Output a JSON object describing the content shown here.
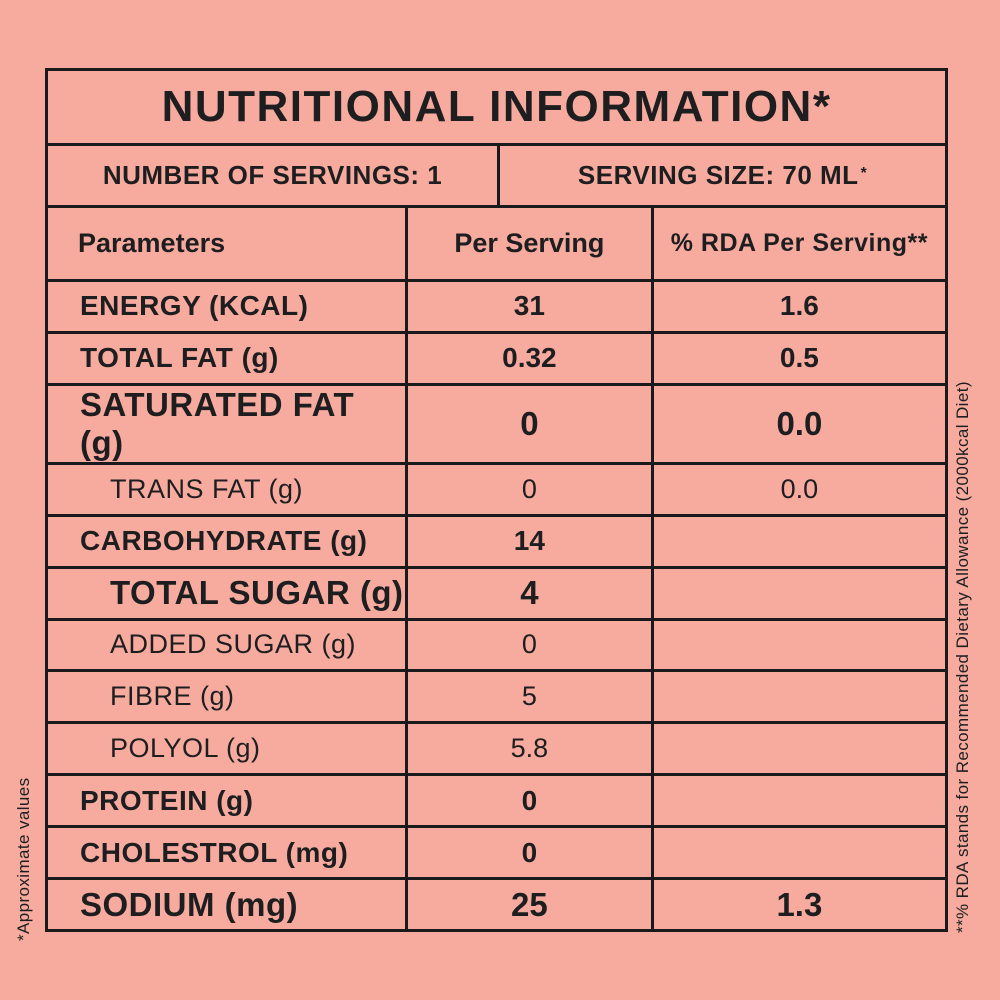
{
  "colors": {
    "background": "#F6AB9E",
    "line": "#1A1A1C",
    "text": "#1E1E20"
  },
  "table": {
    "title": "NUTRITIONAL INFORMATION*",
    "servings_label": "NUMBER OF SERVINGS: 1",
    "serving_size_label": "SERVING SIZE: 70 ML",
    "serving_size_footnote_mark": "*",
    "columns": [
      "Parameters",
      "Per Serving",
      "% RDA Per Serving**"
    ],
    "rows": [
      {
        "label": "ENERGY (KCAL)",
        "per_serving": "31",
        "rda": "1.6",
        "weight": "bold",
        "size": "md",
        "indent": 0
      },
      {
        "label": "TOTAL FAT (g)",
        "per_serving": "0.32",
        "rda": "0.5",
        "weight": "bold",
        "size": "md",
        "indent": 0
      },
      {
        "label": "SATURATED FAT (g)",
        "per_serving": "0",
        "rda": "0.0",
        "weight": "bold",
        "size": "lg",
        "indent": 0
      },
      {
        "label": "TRANS FAT (g)",
        "per_serving": "0",
        "rda": "0.0",
        "weight": "light",
        "size": "md",
        "indent": 1
      },
      {
        "label": "CARBOHYDRATE (g)",
        "per_serving": "14",
        "rda": "",
        "weight": "bold",
        "size": "md",
        "indent": 0
      },
      {
        "label": "TOTAL SUGAR (g)",
        "per_serving": "4",
        "rda": "",
        "weight": "bold",
        "size": "lg",
        "indent": 1
      },
      {
        "label": "ADDED SUGAR (g)",
        "per_serving": "0",
        "rda": "",
        "weight": "light",
        "size": "md",
        "indent": 1
      },
      {
        "label": "FIBRE (g)",
        "per_serving": "5",
        "rda": "",
        "weight": "light",
        "size": "md",
        "indent": 1
      },
      {
        "label": "POLYOL (g)",
        "per_serving": "5.8",
        "rda": "",
        "weight": "light",
        "size": "md",
        "indent": 1
      },
      {
        "label": "PROTEIN (g)",
        "per_serving": "0",
        "rda": "",
        "weight": "bold",
        "size": "md",
        "indent": 0
      },
      {
        "label": "CHOLESTROL (mg)",
        "per_serving": "0",
        "rda": "",
        "weight": "bold",
        "size": "md",
        "indent": 0
      },
      {
        "label": "SODIUM (mg)",
        "per_serving": "25",
        "rda": "1.3",
        "weight": "bold",
        "size": "lg",
        "indent": 0
      }
    ]
  },
  "footnotes": {
    "left_vertical": "*Approximate values",
    "right_vertical": "**% RDA stands for Recommended Dietary Allowance (2000kcal Diet)"
  }
}
